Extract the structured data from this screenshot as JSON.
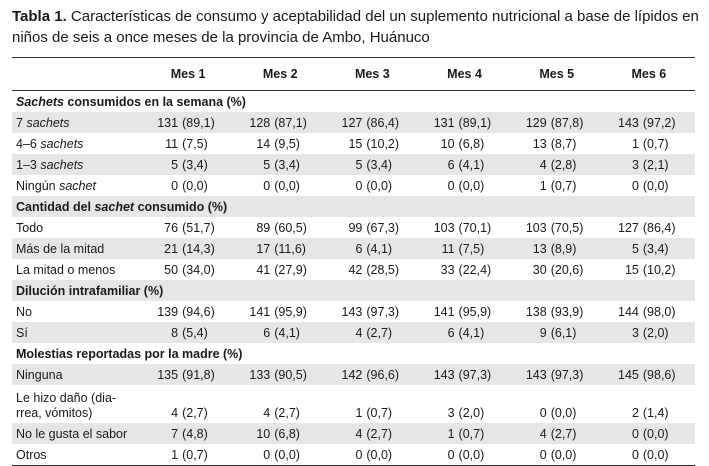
{
  "caption": {
    "label": "Tabla 1.",
    "text": " Características de consumo y aceptabilidad del un suplemento nutricional a base de lípidos en niños de seis a once meses de la provincia de Ambo, Huánuco"
  },
  "table": {
    "headers": [
      "",
      "Mes 1",
      "Mes 2",
      "Mes 3",
      "Mes 4",
      "Mes 5",
      "Mes 6"
    ],
    "sections": [
      {
        "title_pre": "",
        "title_em": "Sachets",
        "title_post": " consumidos en la semana (%)",
        "rows": [
          {
            "label_pre": "7 ",
            "label_em": "sachets",
            "cells": [
              [
                "131",
                "(89,1)"
              ],
              [
                "128",
                "(87,1)"
              ],
              [
                "127",
                "(86,4)"
              ],
              [
                "131",
                "(89,1)"
              ],
              [
                "129",
                "(87,8)"
              ],
              [
                "143",
                "(97,2)"
              ]
            ]
          },
          {
            "label_pre": "4–6 ",
            "label_em": "sachets",
            "cells": [
              [
                "11",
                "(7,5)"
              ],
              [
                "14",
                "(9,5)"
              ],
              [
                "15",
                "(10,2)"
              ],
              [
                "10",
                "(6,8)"
              ],
              [
                "13",
                "(8,7)"
              ],
              [
                "1",
                "(0,7)"
              ]
            ]
          },
          {
            "label_pre": "1–3 ",
            "label_em": "sachets",
            "cells": [
              [
                "5",
                "(3,4)"
              ],
              [
                "5",
                "(3,4)"
              ],
              [
                "5",
                "(3,4)"
              ],
              [
                "6",
                "(4,1)"
              ],
              [
                "4",
                "(2,8)"
              ],
              [
                "3",
                "(2,1)"
              ]
            ]
          },
          {
            "label_pre": "Ningún ",
            "label_em": "sachet",
            "cells": [
              [
                "0",
                "(0,0)"
              ],
              [
                "0",
                "(0,0)"
              ],
              [
                "0",
                "(0,0)"
              ],
              [
                "0",
                "(0,0)"
              ],
              [
                "1",
                "(0,7)"
              ],
              [
                "0",
                "(0,0)"
              ]
            ]
          }
        ]
      },
      {
        "title_pre": "Cantidad del ",
        "title_em": "sachet",
        "title_post": " consumido (%)",
        "rows": [
          {
            "label_pre": "Todo",
            "label_em": "",
            "cells": [
              [
                "76",
                "(51,7)"
              ],
              [
                "89",
                "(60,5)"
              ],
              [
                "99",
                "(67,3)"
              ],
              [
                "103",
                "(70,1)"
              ],
              [
                "103",
                "(70,5)"
              ],
              [
                "127",
                "(86,4)"
              ]
            ]
          },
          {
            "label_pre": "Más de la mitad",
            "label_em": "",
            "cells": [
              [
                "21",
                "(14,3)"
              ],
              [
                "17",
                "(11,6)"
              ],
              [
                "6",
                "(4,1)"
              ],
              [
                "11",
                "(7,5)"
              ],
              [
                "13",
                "(8,9)"
              ],
              [
                "5",
                "(3,4)"
              ]
            ]
          },
          {
            "label_pre": "La mitad o menos",
            "label_em": "",
            "cells": [
              [
                "50",
                "(34,0)"
              ],
              [
                "41",
                "(27,9)"
              ],
              [
                "42",
                "(28,5)"
              ],
              [
                "33",
                "(22,4)"
              ],
              [
                "30",
                "(20,6)"
              ],
              [
                "15",
                "(10,2)"
              ]
            ]
          }
        ]
      },
      {
        "title_pre": "Dilución intrafamiliar (%)",
        "title_em": "",
        "title_post": "",
        "rows": [
          {
            "label_pre": "No",
            "label_em": "",
            "cells": [
              [
                "139",
                "(94,6)"
              ],
              [
                "141",
                "(95,9)"
              ],
              [
                "143",
                "(97,3)"
              ],
              [
                "141",
                "(95,9)"
              ],
              [
                "138",
                "(93,9)"
              ],
              [
                "144",
                "(98,0)"
              ]
            ]
          },
          {
            "label_pre": "Sí",
            "label_em": "",
            "cells": [
              [
                "8",
                "(5,4)"
              ],
              [
                "6",
                "(4,1)"
              ],
              [
                "4",
                "(2,7)"
              ],
              [
                "6",
                "(4,1)"
              ],
              [
                "9",
                "(6,1)"
              ],
              [
                "3",
                "(2,0)"
              ]
            ]
          }
        ]
      },
      {
        "title_pre": "Molestias reportadas por la madre (%)",
        "title_em": "",
        "title_post": "",
        "rows": [
          {
            "label_pre": "Ninguna",
            "label_em": "",
            "cells": [
              [
                "135",
                "(91,8)"
              ],
              [
                "133",
                "(90,5)"
              ],
              [
                "142",
                "(96,6)"
              ],
              [
                "143",
                "(97,3)"
              ],
              [
                "143",
                "(97,3)"
              ],
              [
                "145",
                "(98,6)"
              ]
            ]
          },
          {
            "label_pre": "Le hizo daño (dia-\nrrea, vómitos)",
            "label_em": "",
            "twoline": true,
            "cells": [
              [
                "4",
                "(2,7)"
              ],
              [
                "4",
                "(2,7)"
              ],
              [
                "1",
                "(0,7)"
              ],
              [
                "3",
                "(2,0)"
              ],
              [
                "0",
                "(0,0)"
              ],
              [
                "2",
                "(1,4)"
              ]
            ]
          },
          {
            "label_pre": "No le gusta el sabor",
            "label_em": "",
            "cells": [
              [
                "7",
                "(4,8)"
              ],
              [
                "10",
                "(6,8)"
              ],
              [
                "4",
                "(2,7)"
              ],
              [
                "1",
                "(0,7)"
              ],
              [
                "4",
                "(2,7)"
              ],
              [
                "0",
                "(0,0)"
              ]
            ]
          },
          {
            "label_pre": "Otros",
            "label_em": "",
            "cells": [
              [
                "1",
                "(0,7)"
              ],
              [
                "0",
                "(0,0)"
              ],
              [
                "0",
                "(0,0)"
              ],
              [
                "0",
                "(0,0)"
              ],
              [
                "0",
                "(0,0)"
              ],
              [
                "0",
                "(0,0)"
              ]
            ]
          }
        ]
      }
    ]
  }
}
